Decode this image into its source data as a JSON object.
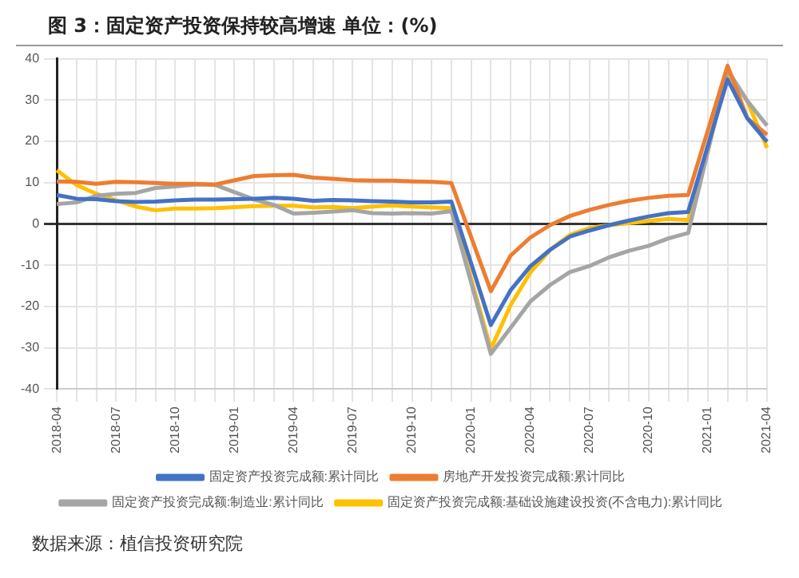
{
  "chart_data": {
    "type": "line",
    "title": "图 3：固定资产投资保持较高增速 单位：(%)",
    "categories": [
      "2018-04",
      null,
      null,
      "2018-07",
      null,
      null,
      "2018-10",
      null,
      null,
      "2019-01",
      null,
      null,
      "2019-04",
      null,
      null,
      "2019-07",
      null,
      null,
      "2019-10",
      null,
      null,
      "2020-01",
      null,
      null,
      "2020-04",
      null,
      null,
      "2020-07",
      null,
      null,
      "2020-10",
      null,
      null,
      "2021-01",
      null,
      null,
      "2021-04"
    ],
    "series": [
      {
        "name": "固定资产投资完成额:累计同比",
        "color": "#4472c4",
        "values": [
          7.0,
          6.1,
          6.0,
          5.5,
          5.3,
          5.4,
          5.7,
          5.9,
          5.9,
          null,
          6.1,
          6.3,
          6.1,
          5.6,
          5.8,
          5.7,
          5.5,
          5.4,
          5.2,
          5.2,
          5.4,
          null,
          -24.5,
          -16.1,
          -10.3,
          -6.3,
          -3.1,
          -1.6,
          -0.3,
          0.8,
          1.8,
          2.6,
          2.9,
          null,
          35.0,
          25.6,
          19.9
        ]
      },
      {
        "name": "房地产开发投资完成额:累计同比",
        "color": "#ed7d31",
        "values": [
          10.3,
          10.2,
          9.7,
          10.2,
          10.1,
          9.9,
          9.7,
          9.7,
          9.5,
          null,
          11.6,
          11.8,
          11.9,
          11.2,
          10.9,
          10.6,
          10.5,
          10.5,
          10.3,
          10.2,
          9.9,
          null,
          -16.3,
          -7.7,
          -3.3,
          -0.3,
          1.9,
          3.4,
          4.6,
          5.6,
          6.3,
          6.8,
          7.0,
          null,
          38.3,
          25.6,
          21.6
        ]
      },
      {
        "name": "固定资产投资完成额:制造业:累计同比",
        "color": "#a5a5a5",
        "values": [
          4.8,
          5.2,
          6.8,
          7.3,
          7.5,
          8.7,
          9.1,
          9.5,
          9.5,
          null,
          5.9,
          4.6,
          2.5,
          2.7,
          3.0,
          3.3,
          2.6,
          2.5,
          2.6,
          2.5,
          3.1,
          null,
          -31.5,
          -25.2,
          -18.8,
          -14.8,
          -11.7,
          -10.2,
          -8.1,
          -6.5,
          -5.3,
          -3.5,
          -2.2,
          null,
          37.3,
          29.8,
          23.8
        ]
      },
      {
        "name": "固定资产投资完成额:基础设施建设投资(不含电力):累计同比",
        "color": "#ffc000",
        "values": [
          13.0,
          9.4,
          7.3,
          5.7,
          4.2,
          3.3,
          3.7,
          3.7,
          3.8,
          null,
          4.3,
          4.4,
          4.4,
          4.0,
          4.1,
          3.8,
          4.2,
          4.5,
          4.2,
          4.0,
          3.8,
          null,
          -30.3,
          -19.7,
          -11.8,
          -6.3,
          -2.7,
          -1.0,
          -0.3,
          0.2,
          0.7,
          1.2,
          0.9,
          null,
          36.6,
          29.7,
          18.4
        ]
      }
    ],
    "ylim": [
      -40,
      40
    ],
    "yticks": [
      -40,
      -30,
      -20,
      -10,
      0,
      10,
      20,
      30,
      40
    ],
    "grid": true,
    "legend": "bottom",
    "marker": "none",
    "line_style": "solid",
    "annotations": [
      "数据来源：植信投资研究院"
    ]
  }
}
